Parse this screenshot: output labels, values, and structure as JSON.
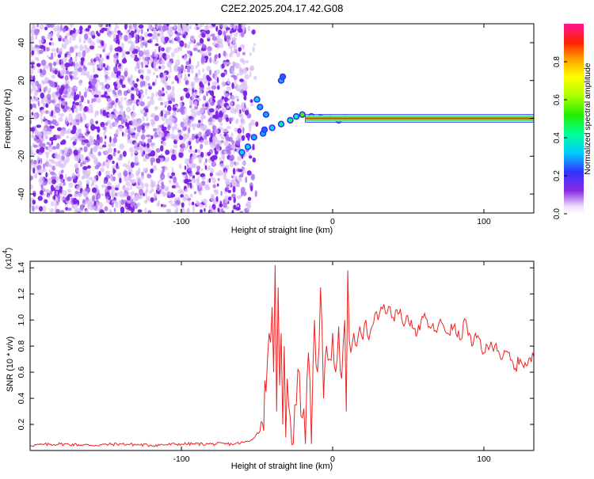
{
  "title": "C2E2.2025.204.17.42.G08",
  "chart_data": [
    {
      "type": "heatmap",
      "xlabel": "Height of straight line (km)",
      "ylabel": "Frequency (Hz)",
      "xlim": [
        -200,
        133
      ],
      "ylim": [
        -50,
        50
      ],
      "xticks": [
        -100,
        0,
        100
      ],
      "yticks": [
        -40,
        -20,
        0,
        20,
        40
      ],
      "signal_band": {
        "x_start": -18,
        "x_end": 133,
        "freq": 0,
        "amplitude": 0.92
      },
      "noise_region": {
        "x_start": -200,
        "x_end": -55
      },
      "signal_track": [
        {
          "x": -60,
          "y": -18,
          "amp": 0.35
        },
        {
          "x": -56,
          "y": -15,
          "amp": 0.35
        },
        {
          "x": -52,
          "y": -10,
          "amp": 0.3
        },
        {
          "x": -46,
          "y": -8,
          "amp": 0.3
        },
        {
          "x": -40,
          "y": -5,
          "amp": 0.35
        },
        {
          "x": -34,
          "y": -3,
          "amp": 0.4
        },
        {
          "x": -28,
          "y": -1,
          "amp": 0.45
        },
        {
          "x": -24,
          "y": 1,
          "amp": 0.4
        },
        {
          "x": -20,
          "y": 2,
          "amp": 0.55
        },
        {
          "x": -14,
          "y": 1,
          "amp": 0.6
        },
        {
          "x": -8,
          "y": 0.5,
          "amp": 0.55
        },
        {
          "x": -2,
          "y": 0,
          "amp": 0.55
        },
        {
          "x": 4,
          "y": -1,
          "amp": 0.5
        },
        {
          "x": 9,
          "y": 0,
          "amp": 0.45
        },
        {
          "x": -50,
          "y": 10,
          "amp": 0.35
        },
        {
          "x": -48,
          "y": 6,
          "amp": 0.3
        },
        {
          "x": -44,
          "y": 2,
          "amp": 0.3
        },
        {
          "x": -45,
          "y": -6,
          "amp": 0.25
        },
        {
          "x": -34,
          "y": 20,
          "amp": 0.3
        },
        {
          "x": -33,
          "y": 22,
          "amp": 0.25
        }
      ]
    },
    {
      "type": "line",
      "xlabel": "Height of straight line (km)",
      "ylabel": "SNR (10 * v/v)",
      "scale_label": "(x10",
      "scale_exp": "4",
      "scale_close": ")",
      "xlim": [
        -200,
        133
      ],
      "ylim": [
        0,
        1.45
      ],
      "xticks": [
        -100,
        0,
        100
      ],
      "yticks": [
        0.2,
        0.4,
        0.6,
        0.8,
        1.0,
        1.2,
        1.4
      ],
      "ytick_labels": [
        "0.2",
        "0.4",
        "0.6",
        "0.8",
        "1.0",
        "1.2",
        "1.4"
      ],
      "color": "#ee2222",
      "series": [
        {
          "x": [
            -200,
            -180,
            -160,
            -140,
            -120,
            -100,
            -80,
            -65,
            -55,
            -48,
            -44,
            -42,
            -40,
            -39,
            -38,
            -37,
            -36,
            -35,
            -34,
            -33,
            -32,
            -31,
            -30,
            -28,
            -26,
            -24,
            -22,
            -20,
            -18,
            -16,
            -14,
            -12,
            -10,
            -8,
            -6,
            -4,
            -2,
            0,
            2,
            4,
            6,
            8,
            9,
            10,
            11,
            12,
            14,
            16,
            18,
            20,
            22,
            24,
            26,
            28,
            30,
            32,
            34,
            36,
            38,
            40,
            44,
            48,
            52,
            56,
            60,
            64,
            68,
            72,
            76,
            80,
            84,
            88,
            92,
            96,
            100,
            104,
            108,
            112,
            116,
            120,
            124,
            128,
            133
          ],
          "y": [
            0.04,
            0.05,
            0.04,
            0.05,
            0.04,
            0.05,
            0.05,
            0.05,
            0.07,
            0.15,
            0.45,
            0.9,
            1.1,
            0.6,
            1.42,
            0.3,
            1.25,
            0.5,
            0.9,
            0.2,
            0.8,
            0.1,
            0.55,
            0.25,
            0.05,
            0.35,
            0.6,
            0.25,
            0.05,
            0.75,
            0.05,
            1.0,
            0.6,
            1.25,
            0.4,
            0.8,
            0.7,
            0.9,
            0.6,
            0.95,
            0.55,
            1.0,
            0.3,
            1.38,
            0.85,
            0.75,
            0.9,
            0.8,
            0.95,
            0.85,
            1.0,
            0.85,
            0.95,
            1.05,
            1.0,
            1.1,
            1.12,
            1.05,
            1.1,
            1.02,
            1.05,
            0.98,
            1.0,
            0.9,
            1.02,
            0.95,
            0.92,
            0.98,
            0.9,
            0.95,
            0.85,
            1.0,
            0.8,
            0.88,
            0.75,
            0.8,
            0.82,
            0.7,
            0.75,
            0.62,
            0.7,
            0.65,
            0.72
          ]
        }
      ]
    }
  ],
  "colorbar": {
    "label": "Normalized spectral amplitude",
    "range": [
      0,
      1
    ],
    "ticks": [
      0.0,
      0.2,
      0.4,
      0.6,
      0.8
    ],
    "tick_labels": [
      "0.0",
      "0.2",
      "0.4",
      "0.6",
      "0.8"
    ]
  }
}
